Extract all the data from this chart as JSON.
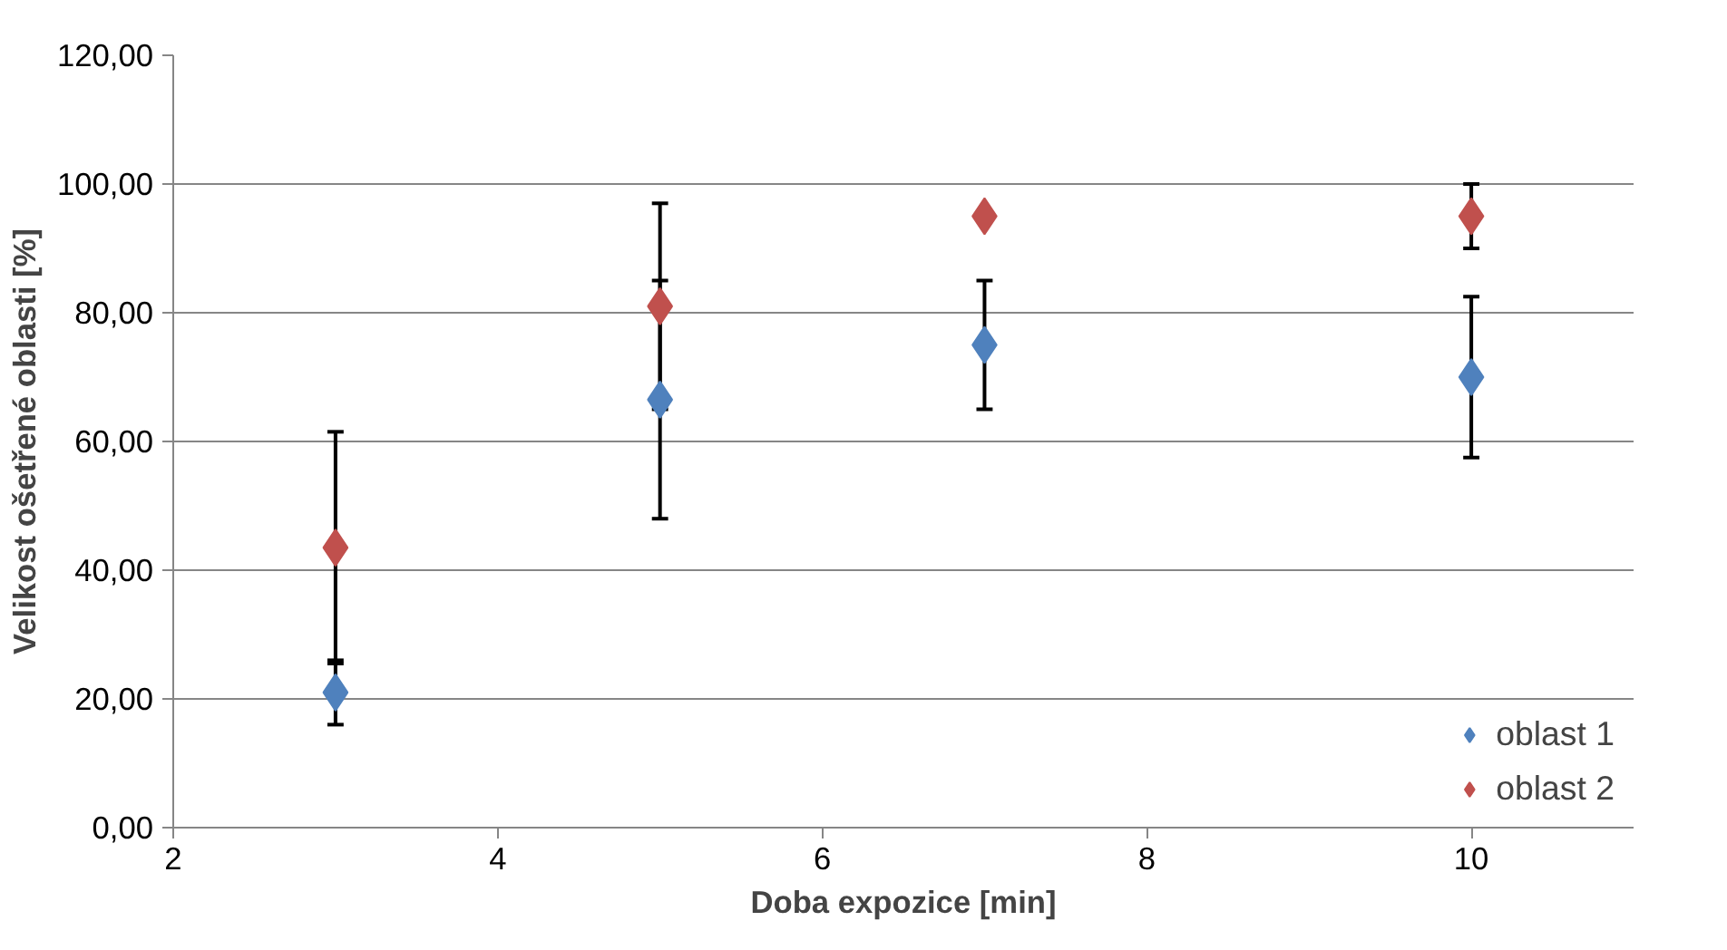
{
  "chart_data": {
    "type": "scatter",
    "xlabel": "Doba expozice [min]",
    "ylabel": "Velikost ošetřené oblasti [%]",
    "xlim": [
      2,
      11
    ],
    "xticks": [
      2,
      4,
      6,
      8,
      10
    ],
    "ylim": [
      0,
      120
    ],
    "yticks": [
      {
        "value": 0,
        "label": "0,00"
      },
      {
        "value": 20,
        "label": "20,00"
      },
      {
        "value": 40,
        "label": "40,00"
      },
      {
        "value": 60,
        "label": "60,00"
      },
      {
        "value": 80,
        "label": "80,00"
      },
      {
        "value": 100,
        "label": "100,00"
      },
      {
        "value": 120,
        "label": "120,00"
      }
    ],
    "grid": "y",
    "legend": "bottom right",
    "marker": "diamond",
    "series": [
      {
        "name": "oblast 1",
        "color": "#4f81bd",
        "x": [
          3,
          5,
          7,
          10
        ],
        "values": [
          21,
          66.5,
          75,
          70
        ],
        "errors": [
          5,
          18.5,
          10,
          12.5
        ]
      },
      {
        "name": "oblast 2",
        "color": "#c0504d",
        "x": [
          3,
          5,
          7,
          10
        ],
        "values": [
          43.5,
          81,
          95,
          95
        ],
        "errors": [
          18,
          16,
          null,
          5
        ]
      }
    ]
  }
}
